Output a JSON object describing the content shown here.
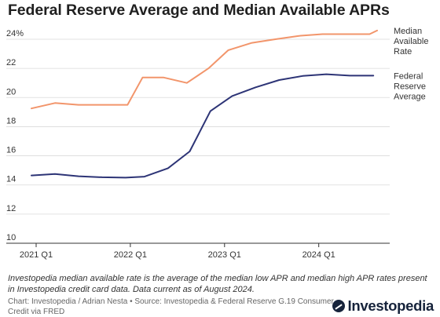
{
  "chart_data": {
    "type": "line",
    "title": "Federal Reserve Average and Median Available APRs",
    "xlabel": "",
    "ylabel": "",
    "ylim": [
      10,
      24.6
    ],
    "y_ticks": [
      "24%",
      "22",
      "20",
      "18",
      "16",
      "14",
      "12",
      "10"
    ],
    "y_tick_values": [
      24,
      22,
      20,
      18,
      16,
      14,
      12,
      10
    ],
    "x_ticks": [
      "2021 Q1",
      "2022 Q1",
      "2023 Q1",
      "2024 Q1"
    ],
    "x_tick_values": [
      2021.0,
      2022.0,
      2023.0,
      2024.0
    ],
    "xlim": [
      2020.95,
      2024.72
    ],
    "grid": true,
    "legend": "direct labels at right end of lines",
    "series": [
      {
        "name": "Median Available Rate",
        "color": "#f2956b",
        "points": [
          [
            2020.95,
            19.25
          ],
          [
            2021.2,
            19.62
          ],
          [
            2021.45,
            19.5
          ],
          [
            2021.7,
            19.5
          ],
          [
            2021.97,
            19.5
          ],
          [
            2022.13,
            21.38
          ],
          [
            2022.35,
            21.38
          ],
          [
            2022.6,
            21.0
          ],
          [
            2022.83,
            22.0
          ],
          [
            2023.04,
            23.25
          ],
          [
            2023.29,
            23.75
          ],
          [
            2023.54,
            24.0
          ],
          [
            2023.79,
            24.23
          ],
          [
            2024.04,
            24.35
          ],
          [
            2024.29,
            24.35
          ],
          [
            2024.54,
            24.35
          ],
          [
            2024.62,
            24.6
          ]
        ]
      },
      {
        "name": "Federal Reserve Average",
        "color": "#2d3476",
        "points": [
          [
            2020.95,
            14.65
          ],
          [
            2021.2,
            14.75
          ],
          [
            2021.45,
            14.6
          ],
          [
            2021.7,
            14.53
          ],
          [
            2021.95,
            14.5
          ],
          [
            2022.15,
            14.57
          ],
          [
            2022.4,
            15.15
          ],
          [
            2022.63,
            16.3
          ],
          [
            2022.85,
            19.07
          ],
          [
            2023.08,
            20.1
          ],
          [
            2023.33,
            20.7
          ],
          [
            2023.58,
            21.2
          ],
          [
            2023.83,
            21.48
          ],
          [
            2024.08,
            21.6
          ],
          [
            2024.33,
            21.5
          ],
          [
            2024.58,
            21.5
          ]
        ]
      }
    ],
    "series_labels": [
      [
        "Median",
        "Available",
        "Rate"
      ],
      [
        "Federal",
        "Reserve",
        "Average"
      ]
    ]
  },
  "note": "Investopedia median available rate is the average of the median low APR and median high APR rates present in Investopedia credit card data. Data current as of August 2024.",
  "source": "Chart: Investopedia / Adrian Nesta • Source: Investopedia & Federal Reserve G.19 Consumer Credit via FRED",
  "brand": {
    "name": "Investopedia",
    "icon": "investopedia-logo-icon"
  }
}
